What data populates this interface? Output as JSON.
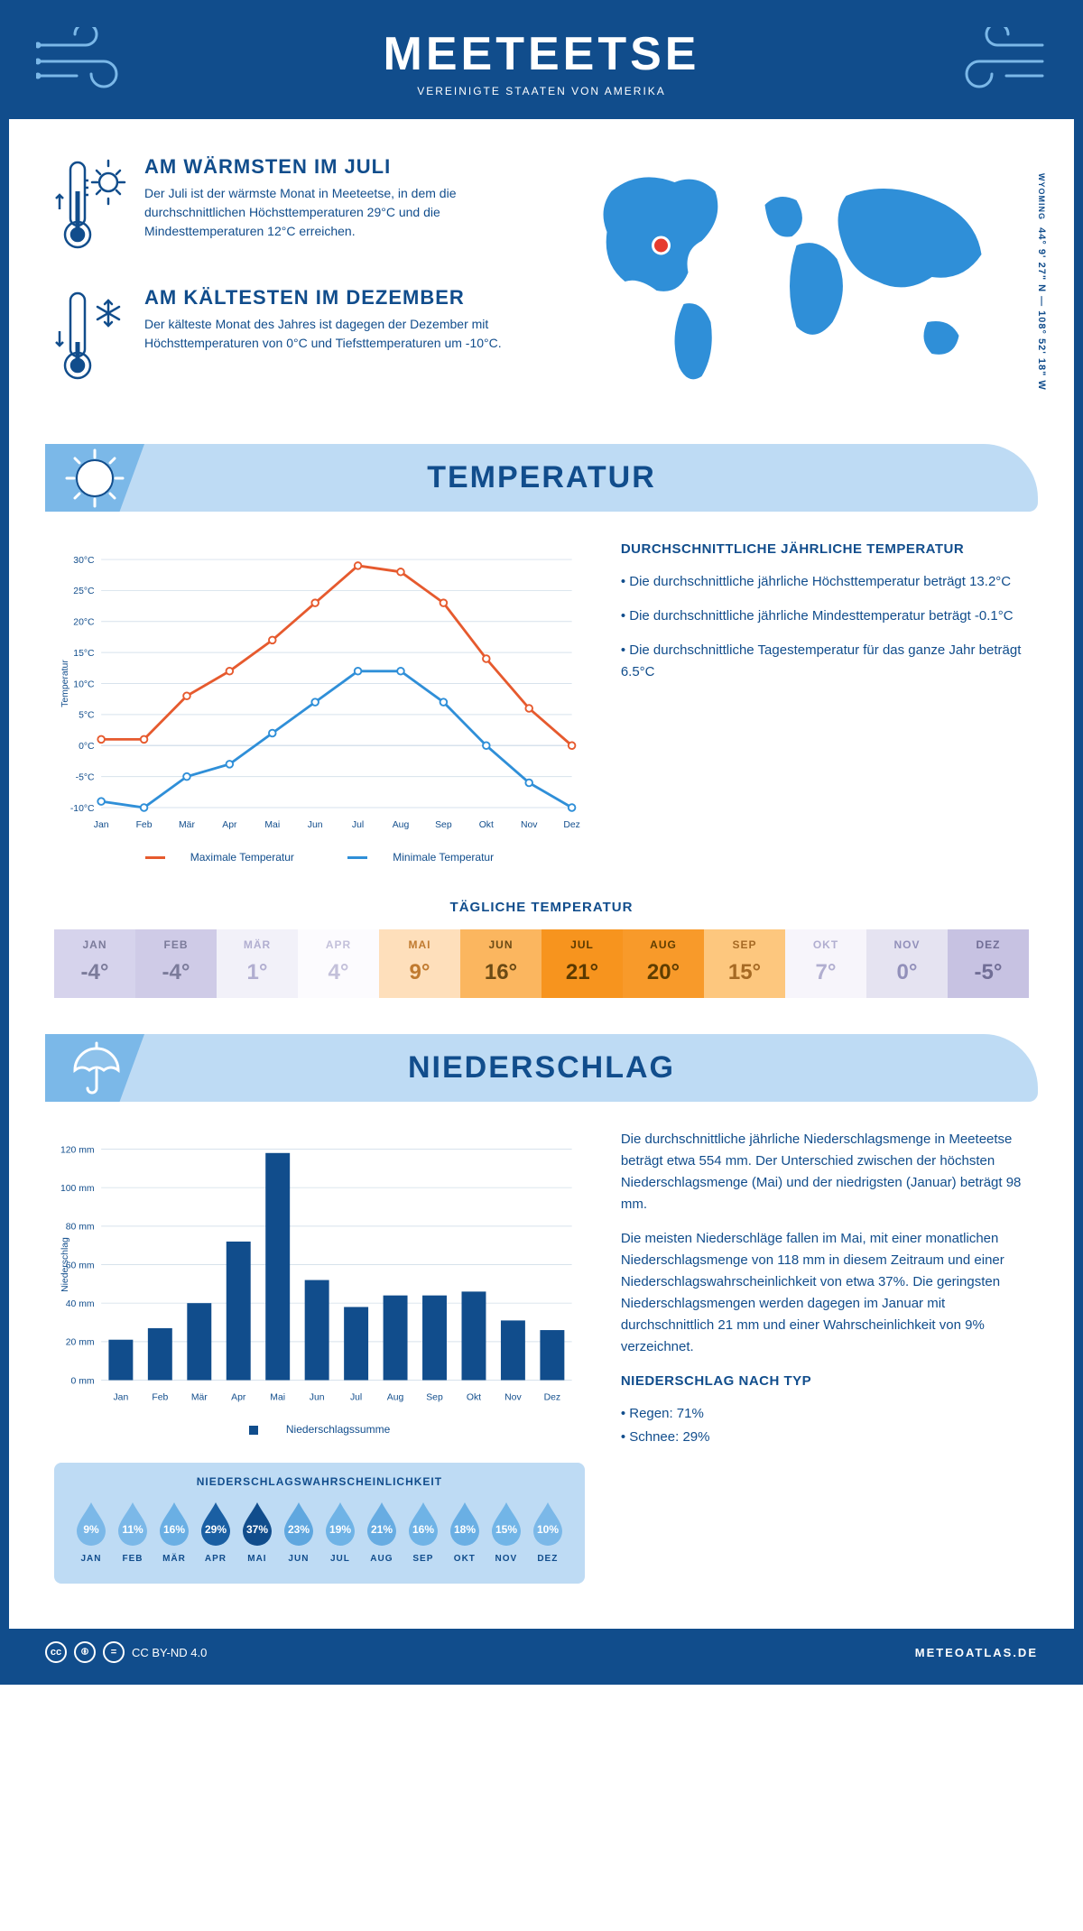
{
  "header": {
    "title": "MEETEETSE",
    "subtitle": "VEREINIGTE STAATEN VON AMERIKA"
  },
  "coords": "44° 9' 27\" N — 108° 52' 18\" W",
  "region": "WYOMING",
  "facts": {
    "warm": {
      "title": "AM WÄRMSTEN IM JULI",
      "body": "Der Juli ist der wärmste Monat in Meeteetse, in dem die durchschnittlichen Höchsttemperaturen 29°C und die Mindesttemperaturen 12°C erreichen."
    },
    "cold": {
      "title": "AM KÄLTESTEN IM DEZEMBER",
      "body": "Der kälteste Monat des Jahres ist dagegen der Dezember mit Höchsttemperaturen von 0°C und Tiefsttemperaturen um -10°C."
    }
  },
  "sections": {
    "temp_title": "TEMPERATUR",
    "precip_title": "NIEDERSCHLAG"
  },
  "temp_chart": {
    "months": [
      "Jan",
      "Feb",
      "Mär",
      "Apr",
      "Mai",
      "Jun",
      "Jul",
      "Aug",
      "Sep",
      "Okt",
      "Nov",
      "Dez"
    ],
    "max": [
      1,
      1,
      8,
      12,
      17,
      23,
      29,
      28,
      23,
      14,
      6,
      0
    ],
    "min": [
      -9,
      -10,
      -5,
      -3,
      2,
      7,
      12,
      12,
      7,
      0,
      -6,
      -10
    ],
    "ylim_min": -10,
    "ylim_max": 30,
    "ytick_step": 5,
    "max_color": "#e65a2e",
    "min_color": "#2f8fd8",
    "ylabel": "Temperatur",
    "legend_max": "Maximale Temperatur",
    "legend_min": "Minimale Temperatur",
    "line_width": 3,
    "marker_size": 4
  },
  "temp_side": {
    "title": "DURCHSCHNITTLICHE JÄHRLICHE TEMPERATUR",
    "l1": "• Die durchschnittliche jährliche Höchsttemperatur beträgt 13.2°C",
    "l2": "• Die durchschnittliche jährliche Mindesttemperatur beträgt -0.1°C",
    "l3": "• Die durchschnittliche Tagestemperatur für das ganze Jahr beträgt 6.5°C"
  },
  "daily_temp": {
    "title": "TÄGLICHE TEMPERATUR",
    "months": [
      "JAN",
      "FEB",
      "MÄR",
      "APR",
      "MAI",
      "JUN",
      "JUL",
      "AUG",
      "SEP",
      "OKT",
      "NOV",
      "DEZ"
    ],
    "values": [
      "-4°",
      "-4°",
      "1°",
      "4°",
      "9°",
      "16°",
      "21°",
      "20°",
      "15°",
      "7°",
      "0°",
      "-5°"
    ],
    "bg": [
      "#d6d3ec",
      "#cfcbe7",
      "#f2f1f9",
      "#fcfbfe",
      "#fedfbb",
      "#fbb65f",
      "#f7941e",
      "#f89a2a",
      "#fdc77e",
      "#f7f5fb",
      "#e5e3f1",
      "#c7c2e2"
    ],
    "fg": [
      "#7b7b9a",
      "#7b7b9a",
      "#b1aed0",
      "#c3c0da",
      "#c07a2f",
      "#6b4a14",
      "#5a3900",
      "#5f3d00",
      "#a66a24",
      "#b1aed0",
      "#9290ba",
      "#716e96"
    ]
  },
  "precip_chart": {
    "months": [
      "Jan",
      "Feb",
      "Mär",
      "Apr",
      "Mai",
      "Jun",
      "Jul",
      "Aug",
      "Sep",
      "Okt",
      "Nov",
      "Dez"
    ],
    "values": [
      21,
      27,
      40,
      72,
      118,
      52,
      38,
      44,
      44,
      46,
      31,
      26
    ],
    "ylim_max": 120,
    "ytick_step": 20,
    "bar_color": "#114d8c",
    "ylabel": "Niederschlag",
    "legend": "Niederschlagssumme"
  },
  "precip_side": {
    "p1": "Die durchschnittliche jährliche Niederschlagsmenge in Meeteetse beträgt etwa 554 mm. Der Unterschied zwischen der höchsten Niederschlagsmenge (Mai) und der niedrigsten (Januar) beträgt 98 mm.",
    "p2": "Die meisten Niederschläge fallen im Mai, mit einer monatlichen Niederschlagsmenge von 118 mm in diesem Zeitraum und einer Niederschlagswahrscheinlichkeit von etwa 37%. Die geringsten Niederschlagsmengen werden dagegen im Januar mit durchschnittlich 21 mm und einer Wahrscheinlichkeit von 9% verzeichnet.",
    "type_title": "NIEDERSCHLAG NACH TYP",
    "type_rain": "• Regen: 71%",
    "type_snow": "• Schnee: 29%"
  },
  "precip_prob": {
    "title": "NIEDERSCHLAGSWAHRSCHEINLICHKEIT",
    "months": [
      "JAN",
      "FEB",
      "MÄR",
      "APR",
      "MAI",
      "JUN",
      "JUL",
      "AUG",
      "SEP",
      "OKT",
      "NOV",
      "DEZ"
    ],
    "values": [
      "9%",
      "11%",
      "16%",
      "29%",
      "37%",
      "23%",
      "19%",
      "21%",
      "16%",
      "18%",
      "15%",
      "10%"
    ],
    "fill": [
      "#7bb8e8",
      "#7bb8e8",
      "#6aafe4",
      "#1a5fa3",
      "#114d8c",
      "#5fa7df",
      "#6fb3e6",
      "#67ace2",
      "#6fb3e6",
      "#6aafe4",
      "#72b5e7",
      "#7bb8e8"
    ]
  },
  "footer": {
    "license": "CC BY-ND 4.0",
    "site": "METEOATLAS.DE"
  },
  "colors": {
    "brand": "#114d8c",
    "light": "#bedbf4",
    "mid": "#7bb8e8",
    "map": "#2f8fd8",
    "marker": "#e63b2e"
  }
}
